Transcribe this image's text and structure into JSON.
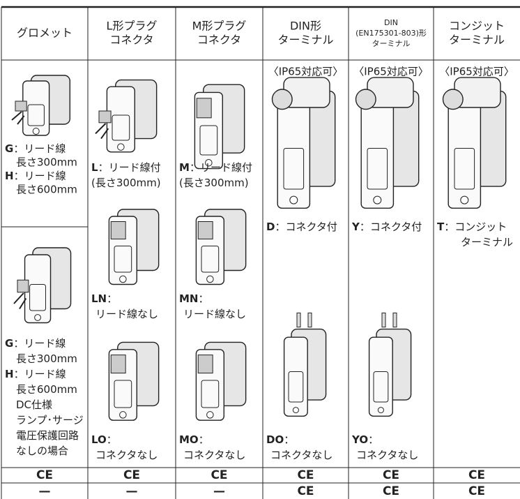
{
  "header": [
    [
      "グロメット"
    ],
    [
      "L形プラグ",
      "コネクタ"
    ],
    [
      "M形プラグ",
      "コネクタ"
    ],
    [
      "DIN形",
      "ターミナル"
    ],
    [
      "DIN",
      "(EN175301-803)形",
      "ターミナル"
    ],
    [
      "コンジット",
      "ターミナル"
    ]
  ],
  "body": [
    {
      "cells": [
        {
          "groups": [
            [
              {
                "code": "G",
                "text": "：リード線"
              },
              {
                "text": "長さ300mm"
              },
              {
                "code": "H",
                "text": "：リード線"
              },
              {
                "text": "長さ600mm"
              }
            ]
          ]
        },
        {
          "groups": [
            [
              {
                "code": "G",
                "text": "：リード線"
              },
              {
                "text": "長さ300mm"
              },
              {
                "code": "H",
                "text": "：リード線"
              },
              {
                "text": "長さ600mm"
              },
              {
                "text": "DC仕様"
              },
              {
                "text": "ランプ･サージ"
              },
              {
                "text": "電圧保護回路"
              },
              {
                "text": "なしの場合"
              }
            ]
          ]
        }
      ]
    },
    {
      "cells": [
        {
          "groups": [
            [
              {
                "code": "L",
                "text": "：リード線付"
              },
              {
                "text": "(長さ300mm)"
              }
            ],
            [
              {
                "code": "LN",
                "text": "："
              },
              {
                "text": "リード線なし"
              }
            ],
            [
              {
                "code": "LO",
                "text": "："
              },
              {
                "text": "コネクタなし"
              }
            ]
          ]
        }
      ]
    },
    {
      "cells": [
        {
          "groups": [
            [
              {
                "code": "M",
                "text": "：リード線付"
              },
              {
                "text": "(長さ300mm)"
              }
            ],
            [
              {
                "code": "MN",
                "text": "："
              },
              {
                "text": "リード線なし"
              }
            ],
            [
              {
                "code": "MO",
                "text": "："
              },
              {
                "text": "コネクタなし"
              }
            ]
          ]
        }
      ]
    },
    {
      "cells": [
        {
          "note": "〈IP65対応可〉",
          "groups": [
            [
              {
                "code": "D",
                "text": "：コネクタ付"
              }
            ],
            [
              {
                "code": "DO",
                "text": "："
              },
              {
                "text": "コネクタなし"
              }
            ]
          ]
        }
      ]
    },
    {
      "cells": [
        {
          "note": "〈IP65対応可〉",
          "groups": [
            [
              {
                "code": "Y",
                "text": "：コネクタ付"
              }
            ],
            [
              {
                "code": "YO",
                "text": "："
              },
              {
                "text": "コネクタなし"
              }
            ]
          ]
        }
      ]
    },
    {
      "cells": [
        {
          "note": "〈IP65対応可〉",
          "groups": [
            [
              {
                "code": "T",
                "text": "：コンジット"
              },
              {
                "text": "ターミナル"
              }
            ]
          ]
        }
      ]
    }
  ],
  "ce_row": [
    "CE",
    "CE",
    "CE",
    "CE",
    "CE",
    "CE"
  ],
  "last_row": [
    "—",
    "—",
    "—",
    "CE",
    "CE",
    "CE"
  ]
}
